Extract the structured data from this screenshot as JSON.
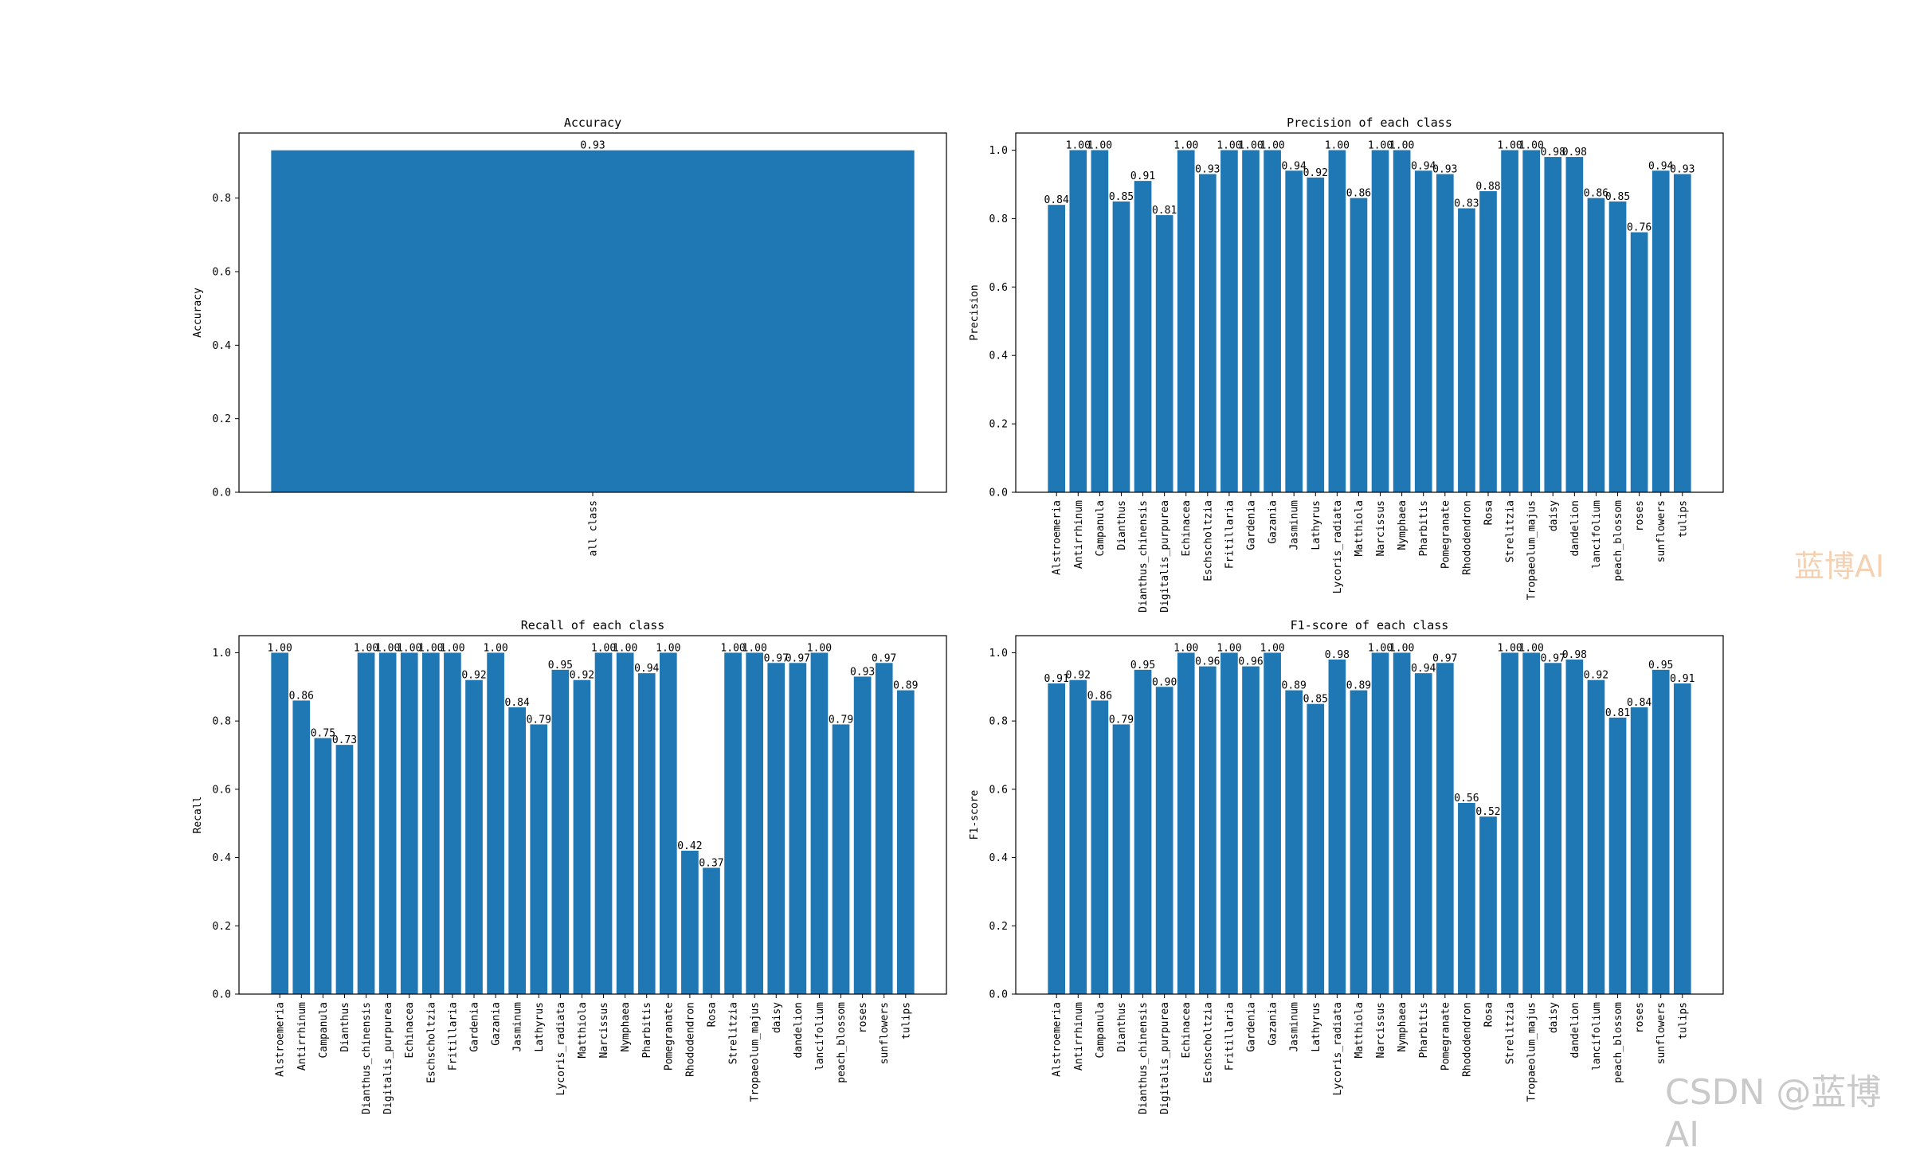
{
  "watermarks": [
    "蓝博AI",
    "CSDN @蓝博AI"
  ],
  "charts": [
    {
      "type": "bar",
      "title": "Accuracy",
      "ylabel": "Accuracy",
      "xlabel": "",
      "ylim": [
        0,
        0.977
      ],
      "yticks": [
        "0.0",
        "0.2",
        "0.4",
        "0.6",
        "0.8"
      ],
      "categories": [
        "all class"
      ],
      "values": [
        0.93
      ],
      "labels": [
        "0.93"
      ],
      "color": "#1f77b4"
    },
    {
      "type": "bar",
      "title": "Precision of each class",
      "ylabel": "Precision",
      "xlabel": "",
      "ylim": [
        0,
        1.05
      ],
      "yticks": [
        "0.0",
        "0.2",
        "0.4",
        "0.6",
        "0.8",
        "1.0"
      ],
      "categories": [
        "Alstroemeria",
        "Antirrhinum",
        "Campanula",
        "Dianthus",
        "Dianthus_chinensis",
        "Digitalis_purpurea",
        "Echinacea",
        "Eschscholtzia",
        "Fritillaria",
        "Gardenia",
        "Gazania",
        "Jasminum",
        "Lathyrus",
        "Lycoris_radiata",
        "Matthiola",
        "Narcissus",
        "Nymphaea",
        "Pharbitis",
        "Pomegranate",
        "Rhododendron",
        "Rosa",
        "Strelitzia",
        "Tropaeolum_majus",
        "daisy",
        "dandelion",
        "lancifolium",
        "peach_blossom",
        "roses",
        "sunflowers",
        "tulips"
      ],
      "values": [
        0.84,
        1.0,
        1.0,
        0.85,
        0.91,
        0.81,
        1.0,
        0.93,
        1.0,
        1.0,
        1.0,
        0.94,
        0.92,
        1.0,
        0.86,
        1.0,
        1.0,
        0.94,
        0.93,
        0.83,
        0.88,
        1.0,
        1.0,
        0.98,
        0.98,
        0.86,
        0.85,
        0.76,
        0.94,
        0.93
      ],
      "labels": [
        "0.84",
        "1.00",
        "1.00",
        "0.85",
        "0.91",
        "0.81",
        "1.00",
        "0.93",
        "1.00",
        "1.00",
        "1.00",
        "0.94",
        "0.92",
        "1.00",
        "0.86",
        "1.00",
        "1.00",
        "0.94",
        "0.93",
        "0.83",
        "0.88",
        "1.00",
        "1.00",
        "0.98",
        "0.98",
        "0.86",
        "0.85",
        "0.76",
        "0.94",
        "0.93"
      ],
      "color": "#1f77b4"
    },
    {
      "type": "bar",
      "title": "Recall of each class",
      "ylabel": "Recall",
      "xlabel": "",
      "ylim": [
        0,
        1.05
      ],
      "yticks": [
        "0.0",
        "0.2",
        "0.4",
        "0.6",
        "0.8",
        "1.0"
      ],
      "categories": [
        "Alstroemeria",
        "Antirrhinum",
        "Campanula",
        "Dianthus",
        "Dianthus_chinensis",
        "Digitalis_purpurea",
        "Echinacea",
        "Eschscholtzia",
        "Fritillaria",
        "Gardenia",
        "Gazania",
        "Jasminum",
        "Lathyrus",
        "Lycoris_radiata",
        "Matthiola",
        "Narcissus",
        "Nymphaea",
        "Pharbitis",
        "Pomegranate",
        "Rhododendron",
        "Rosa",
        "Strelitzia",
        "Tropaeolum_majus",
        "daisy",
        "dandelion",
        "lancifolium",
        "peach_blossom",
        "roses",
        "sunflowers",
        "tulips"
      ],
      "values": [
        1.0,
        0.86,
        0.75,
        0.73,
        1.0,
        1.0,
        1.0,
        1.0,
        1.0,
        0.92,
        1.0,
        0.84,
        0.79,
        0.95,
        0.92,
        1.0,
        1.0,
        0.94,
        1.0,
        0.42,
        0.37,
        1.0,
        1.0,
        0.97,
        0.97,
        1.0,
        0.79,
        0.93,
        0.97,
        0.89
      ],
      "labels": [
        "1.00",
        "0.86",
        "0.75",
        "0.73",
        "1.00",
        "1.00",
        "1.00",
        "1.00",
        "1.00",
        "0.92",
        "1.00",
        "0.84",
        "0.79",
        "0.95",
        "0.92",
        "1.00",
        "1.00",
        "0.94",
        "1.00",
        "0.42",
        "0.37",
        "1.00",
        "1.00",
        "0.97",
        "0.97",
        "1.00",
        "0.79",
        "0.93",
        "0.97",
        "0.89"
      ],
      "color": "#1f77b4"
    },
    {
      "type": "bar",
      "title": "F1-score of each class",
      "ylabel": "F1-score",
      "xlabel": "",
      "ylim": [
        0,
        1.05
      ],
      "yticks": [
        "0.0",
        "0.2",
        "0.4",
        "0.6",
        "0.8",
        "1.0"
      ],
      "categories": [
        "Alstroemeria",
        "Antirrhinum",
        "Campanula",
        "Dianthus",
        "Dianthus_chinensis",
        "Digitalis_purpurea",
        "Echinacea",
        "Eschscholtzia",
        "Fritillaria",
        "Gardenia",
        "Gazania",
        "Jasminum",
        "Lathyrus",
        "Lycoris_radiata",
        "Matthiola",
        "Narcissus",
        "Nymphaea",
        "Pharbitis",
        "Pomegranate",
        "Rhododendron",
        "Rosa",
        "Strelitzia",
        "Tropaeolum_majus",
        "daisy",
        "dandelion",
        "lancifolium",
        "peach_blossom",
        "roses",
        "sunflowers",
        "tulips"
      ],
      "values": [
        0.91,
        0.92,
        0.86,
        0.79,
        0.95,
        0.9,
        1.0,
        0.96,
        1.0,
        0.96,
        1.0,
        0.89,
        0.85,
        0.98,
        0.89,
        1.0,
        1.0,
        0.94,
        0.97,
        0.56,
        0.52,
        1.0,
        1.0,
        0.97,
        0.98,
        0.92,
        0.81,
        0.84,
        0.95,
        0.91
      ],
      "labels": [
        "0.91",
        "0.92",
        "0.86",
        "0.79",
        "0.95",
        "0.90",
        "1.00",
        "0.96",
        "1.00",
        "0.96",
        "1.00",
        "0.89",
        "0.85",
        "0.98",
        "0.89",
        "1.00",
        "1.00",
        "0.94",
        "0.97",
        "0.56",
        "0.52",
        "1.00",
        "1.00",
        "0.97",
        "0.98",
        "0.92",
        "0.81",
        "0.84",
        "0.95",
        "0.91"
      ],
      "color": "#1f77b4"
    }
  ]
}
